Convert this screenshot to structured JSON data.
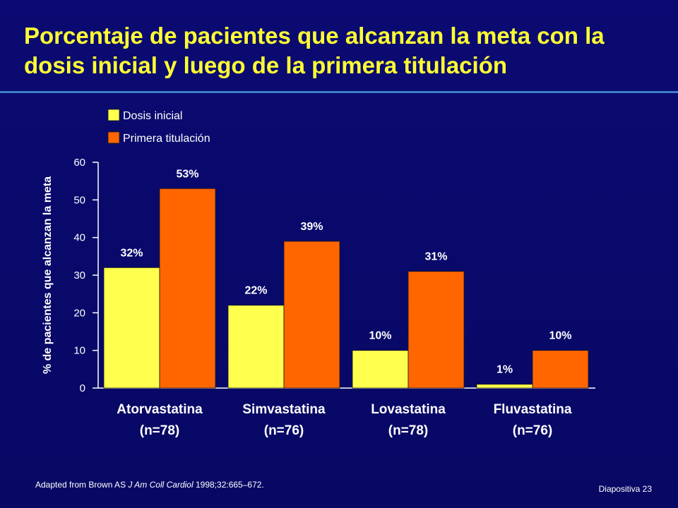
{
  "slide": {
    "title": "Porcentaje de pacientes que alcanzan la meta con la dosis inicial y luego de la primera titulación",
    "source_prefix": "Adapted from Brown AS ",
    "source_journal": "J Am Coll Cardiol",
    "source_suffix": " 1998;32:665–672.",
    "slide_number": "Diapositiva 23"
  },
  "colors": {
    "background": "#0a0a6e",
    "title": "#ffff33",
    "rule": "#3b7fc7",
    "series_1": "#ffff4d",
    "series_2": "#ff6600"
  },
  "chart_data": {
    "type": "bar",
    "title": "",
    "xlabel": "",
    "ylabel": "% de pacientes que alcanzan la meta",
    "ylim": [
      0,
      60
    ],
    "yticks": [
      0,
      10,
      20,
      30,
      40,
      50,
      60
    ],
    "grid": false,
    "legend_position": "top-left",
    "categories": [
      [
        "Atorvastatina",
        "(n=78)"
      ],
      [
        "Simvastatina",
        "(n=76)"
      ],
      [
        "Lovastatina",
        "(n=78)"
      ],
      [
        "Fluvastatina",
        "(n=76)"
      ]
    ],
    "series": [
      {
        "name": "Dosis inicial",
        "values": [
          32,
          22,
          10,
          1
        ],
        "labels": [
          "32%",
          "22%",
          "10%",
          "1%"
        ]
      },
      {
        "name": "Primera titulación",
        "values": [
          53,
          39,
          31,
          10
        ],
        "labels": [
          "53%",
          "39%",
          "31%",
          "10%"
        ]
      }
    ]
  }
}
